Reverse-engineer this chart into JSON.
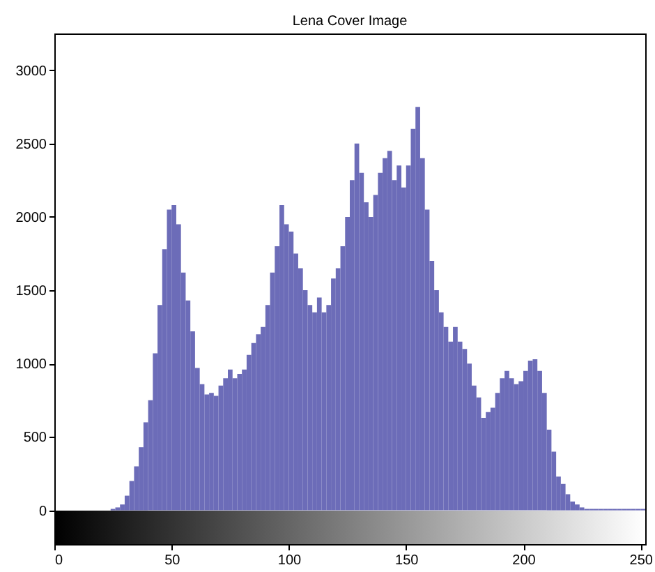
{
  "chart_data": {
    "type": "histogram",
    "title": "Lena Cover Image",
    "color": "#5c5cb0",
    "bins": [
      0,
      2,
      4,
      6,
      8,
      10,
      12,
      14,
      16,
      18,
      20,
      22,
      24,
      26,
      28,
      30,
      32,
      34,
      36,
      38,
      40,
      42,
      44,
      46,
      48,
      50,
      52,
      54,
      56,
      58,
      60,
      62,
      64,
      66,
      68,
      70,
      72,
      74,
      76,
      78,
      80,
      82,
      84,
      86,
      88,
      90,
      92,
      94,
      96,
      98,
      100,
      102,
      104,
      106,
      108,
      110,
      112,
      114,
      116,
      118,
      120,
      122,
      124,
      126,
      128,
      130,
      132,
      134,
      136,
      138,
      140,
      142,
      144,
      146,
      148,
      150,
      152,
      154,
      156,
      158,
      160,
      162,
      164,
      166,
      168,
      170,
      172,
      174,
      176,
      178,
      180,
      182,
      184,
      186,
      188,
      190,
      192,
      194,
      196,
      198,
      200,
      202,
      204,
      206,
      208,
      210,
      212,
      214,
      216,
      218,
      220,
      222,
      224,
      226,
      228,
      230,
      232,
      234,
      236,
      238,
      240,
      242,
      244,
      246,
      248,
      250,
      252
    ],
    "values": [
      0,
      0,
      0,
      0,
      0,
      0,
      0,
      0,
      0,
      0,
      0,
      0,
      10,
      20,
      40,
      100,
      200,
      300,
      430,
      600,
      750,
      1070,
      1400,
      1780,
      2050,
      2080,
      1950,
      1620,
      1430,
      1220,
      970,
      860,
      790,
      800,
      780,
      850,
      900,
      960,
      900,
      930,
      960,
      1060,
      1140,
      1200,
      1250,
      1400,
      1620,
      1800,
      2080,
      1950,
      1900,
      1750,
      1650,
      1500,
      1400,
      1350,
      1450,
      1350,
      1400,
      1580,
      1650,
      1800,
      2000,
      2250,
      2500,
      2300,
      2100,
      2000,
      2150,
      2300,
      2400,
      2450,
      2250,
      2350,
      2200,
      2350,
      2600,
      2750,
      2400,
      2050,
      1700,
      1500,
      1350,
      1250,
      1150,
      1250,
      1150,
      1100,
      1000,
      850,
      770,
      630,
      670,
      700,
      800,
      900,
      950,
      900,
      860,
      880,
      950,
      1020,
      1030,
      950,
      800,
      550,
      400,
      230,
      180,
      110,
      60,
      40,
      20,
      10,
      10,
      10,
      10,
      10,
      10,
      10,
      10,
      10,
      10,
      10,
      10,
      10
    ],
    "xlim": [
      0,
      252
    ],
    "xticks": [
      0,
      50,
      100,
      150,
      200,
      250
    ],
    "ylim": [
      -230,
      3250
    ],
    "yticks": [
      0,
      500,
      1000,
      1500,
      2000,
      2500,
      3000
    ]
  }
}
